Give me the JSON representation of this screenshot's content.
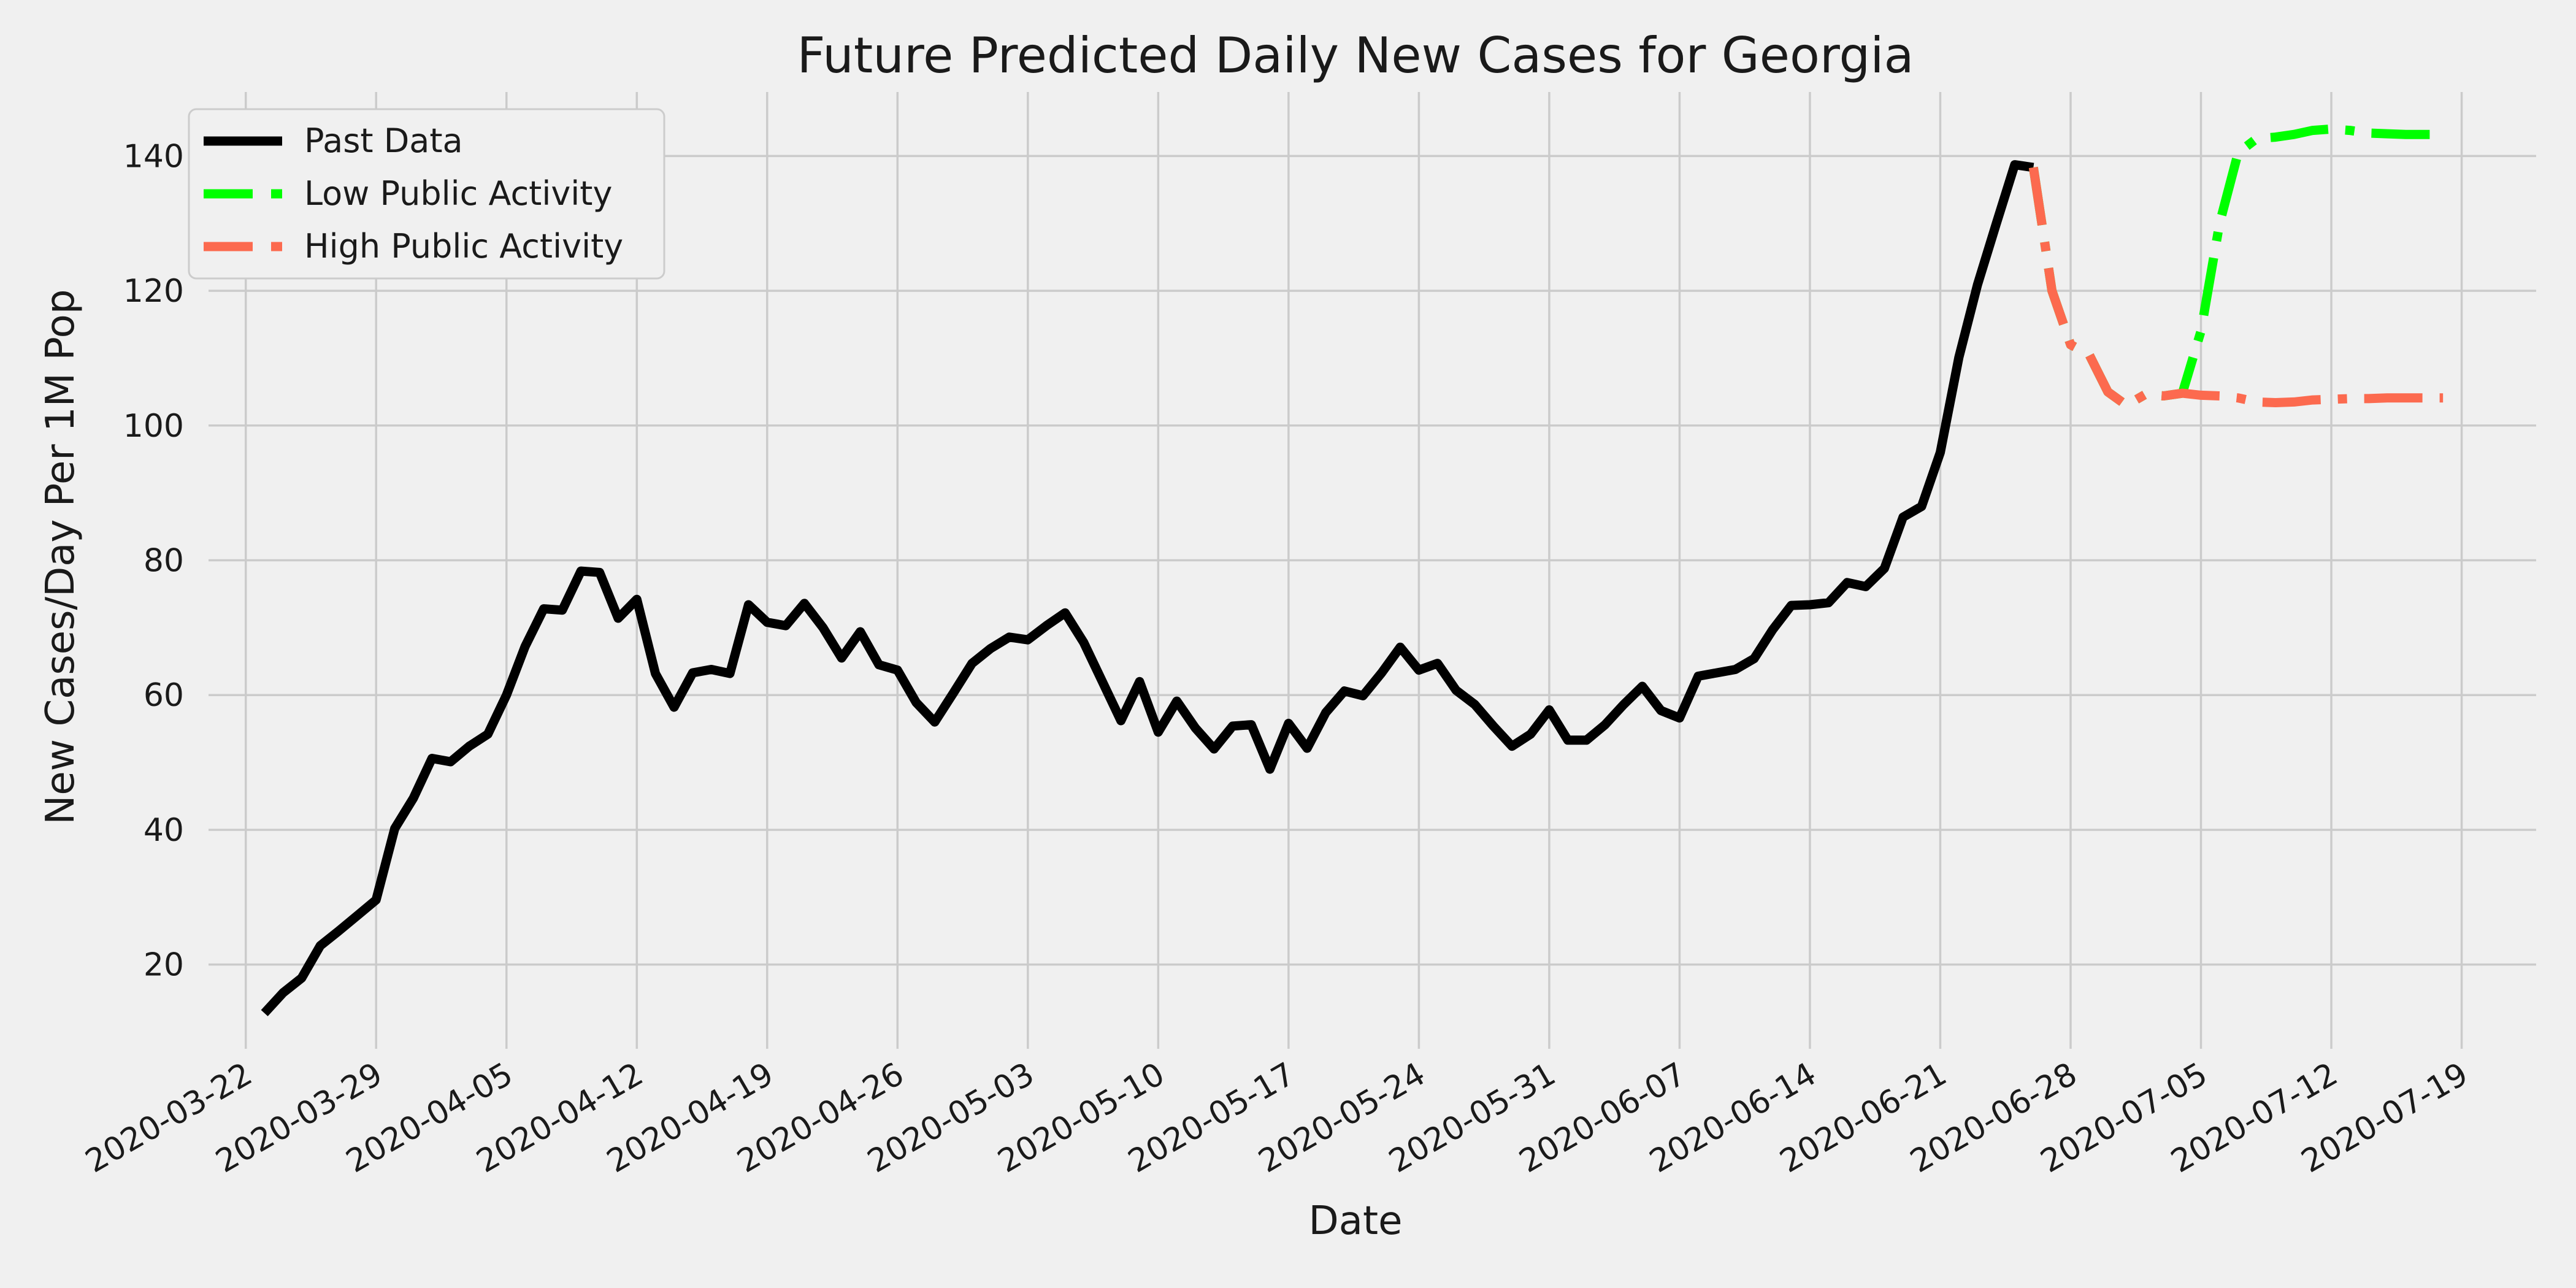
{
  "chart_data": {
    "type": "line",
    "title": "Future Predicted Daily New Cases for Georgia",
    "xlabel": "Date",
    "ylabel": "New Cases/Day Per 1M Pop",
    "x_start_date": "2020-03-23",
    "xlim": [
      "2020-03-20",
      "2020-07-23"
    ],
    "ylim": [
      7.5,
      149.5
    ],
    "x_ticks": [
      "2020-03-22",
      "2020-03-29",
      "2020-04-05",
      "2020-04-12",
      "2020-04-19",
      "2020-04-26",
      "2020-05-03",
      "2020-05-10",
      "2020-05-17",
      "2020-05-24",
      "2020-05-31",
      "2020-06-07",
      "2020-06-14",
      "2020-06-21",
      "2020-06-28",
      "2020-07-05",
      "2020-07-12",
      "2020-07-19"
    ],
    "y_ticks": [
      20,
      40,
      60,
      80,
      100,
      120,
      140
    ],
    "grid": true,
    "legend_position": "upper left",
    "series": [
      {
        "name": "Past Data",
        "color": "#000000",
        "style": "solid",
        "x": [
          "2020-03-23",
          "2020-03-24",
          "2020-03-25",
          "2020-03-26",
          "2020-03-27",
          "2020-03-28",
          "2020-03-29",
          "2020-03-30",
          "2020-03-31",
          "2020-04-01",
          "2020-04-02",
          "2020-04-03",
          "2020-04-04",
          "2020-04-05",
          "2020-04-06",
          "2020-04-07",
          "2020-04-08",
          "2020-04-09",
          "2020-04-10",
          "2020-04-11",
          "2020-04-12",
          "2020-04-13",
          "2020-04-14",
          "2020-04-15",
          "2020-04-16",
          "2020-04-17",
          "2020-04-18",
          "2020-04-19",
          "2020-04-20",
          "2020-04-21",
          "2020-04-22",
          "2020-04-23",
          "2020-04-24",
          "2020-04-25",
          "2020-04-26",
          "2020-04-27",
          "2020-04-28",
          "2020-04-29",
          "2020-04-30",
          "2020-05-01",
          "2020-05-02",
          "2020-05-03",
          "2020-05-04",
          "2020-05-05",
          "2020-05-06",
          "2020-05-07",
          "2020-05-08",
          "2020-05-09",
          "2020-05-10",
          "2020-05-11",
          "2020-05-12",
          "2020-05-13",
          "2020-05-14",
          "2020-05-15",
          "2020-05-16",
          "2020-05-17",
          "2020-05-18",
          "2020-05-19",
          "2020-05-20",
          "2020-05-21",
          "2020-05-22",
          "2020-05-23",
          "2020-05-24",
          "2020-05-25",
          "2020-05-26",
          "2020-05-27",
          "2020-05-28",
          "2020-05-29",
          "2020-05-30",
          "2020-05-31",
          "2020-06-01",
          "2020-06-02",
          "2020-06-03",
          "2020-06-04",
          "2020-06-05",
          "2020-06-06",
          "2020-06-07",
          "2020-06-08",
          "2020-06-09",
          "2020-06-10",
          "2020-06-11",
          "2020-06-12",
          "2020-06-13",
          "2020-06-14",
          "2020-06-15",
          "2020-06-16",
          "2020-06-17",
          "2020-06-18",
          "2020-06-19",
          "2020-06-20",
          "2020-06-21",
          "2020-06-22",
          "2020-06-23",
          "2020-06-24",
          "2020-06-25",
          "2020-06-26"
        ],
        "values": [
          12.8,
          15.8,
          18.0,
          22.8,
          25.0,
          27.3,
          29.6,
          40.2,
          44.7,
          50.6,
          50.1,
          52.4,
          54.2,
          60.0,
          67.2,
          72.8,
          72.6,
          78.4,
          78.2,
          71.4,
          74.2,
          63.2,
          58.2,
          63.3,
          63.8,
          63.2,
          73.4,
          70.8,
          70.3,
          73.6,
          70.0,
          65.5,
          69.4,
          64.5,
          63.7,
          58.9,
          56.0,
          60.3,
          64.7,
          66.9,
          68.6,
          68.2,
          70.3,
          72.2,
          67.8,
          62.0,
          56.2,
          62.0,
          54.5,
          59.1,
          55.1,
          52.0,
          55.4,
          55.6,
          49.0,
          55.8,
          52.1,
          57.4,
          60.6,
          59.9,
          63.3,
          67.1,
          63.7,
          64.7,
          60.7,
          58.6,
          55.4,
          52.4,
          54.2,
          57.8,
          53.3,
          53.3,
          55.6,
          58.6,
          61.3,
          57.7,
          56.6,
          62.8,
          63.3,
          63.8,
          65.4,
          69.7,
          73.3,
          73.4,
          73.7,
          76.7,
          76.1,
          78.8,
          86.4,
          88.0,
          96.0,
          110.1,
          120.9,
          129.9,
          138.7,
          138.3
        ]
      },
      {
        "name": "Low Public Activity",
        "color": "#00ff00",
        "style": "dashdot",
        "x": [
          "2020-06-26",
          "2020-06-27",
          "2020-06-28",
          "2020-06-29",
          "2020-06-30",
          "2020-07-01",
          "2020-07-02",
          "2020-07-03",
          "2020-07-04",
          "2020-07-05",
          "2020-07-06",
          "2020-07-07",
          "2020-07-08",
          "2020-07-09",
          "2020-07-10",
          "2020-07-11",
          "2020-07-12",
          "2020-07-13",
          "2020-07-14",
          "2020-07-15",
          "2020-07-16",
          "2020-07-17",
          "2020-07-18"
        ],
        "values": [
          138.3,
          120.0,
          112.0,
          110.5,
          105.0,
          103.0,
          104.6,
          104.4,
          104.8,
          114.0,
          130.0,
          140.5,
          142.6,
          142.8,
          143.2,
          143.8,
          144.0,
          143.8,
          143.4,
          143.3,
          143.2,
          143.2,
          143.2
        ]
      },
      {
        "name": "High Public Activity",
        "color": "#fc6a4f",
        "style": "dashdot",
        "x": [
          "2020-06-26",
          "2020-06-27",
          "2020-06-28",
          "2020-06-29",
          "2020-06-30",
          "2020-07-01",
          "2020-07-02",
          "2020-07-03",
          "2020-07-04",
          "2020-07-05",
          "2020-07-06",
          "2020-07-07",
          "2020-07-08",
          "2020-07-09",
          "2020-07-10",
          "2020-07-11",
          "2020-07-12",
          "2020-07-13",
          "2020-07-14",
          "2020-07-15",
          "2020-07-16",
          "2020-07-17",
          "2020-07-18"
        ],
        "values": [
          138.3,
          120.0,
          112.0,
          110.5,
          105.0,
          103.0,
          104.6,
          104.4,
          104.8,
          104.5,
          104.4,
          104.1,
          103.5,
          103.4,
          103.5,
          103.8,
          103.9,
          104.0,
          104.0,
          104.1,
          104.1,
          104.1,
          104.1
        ]
      }
    ]
  }
}
